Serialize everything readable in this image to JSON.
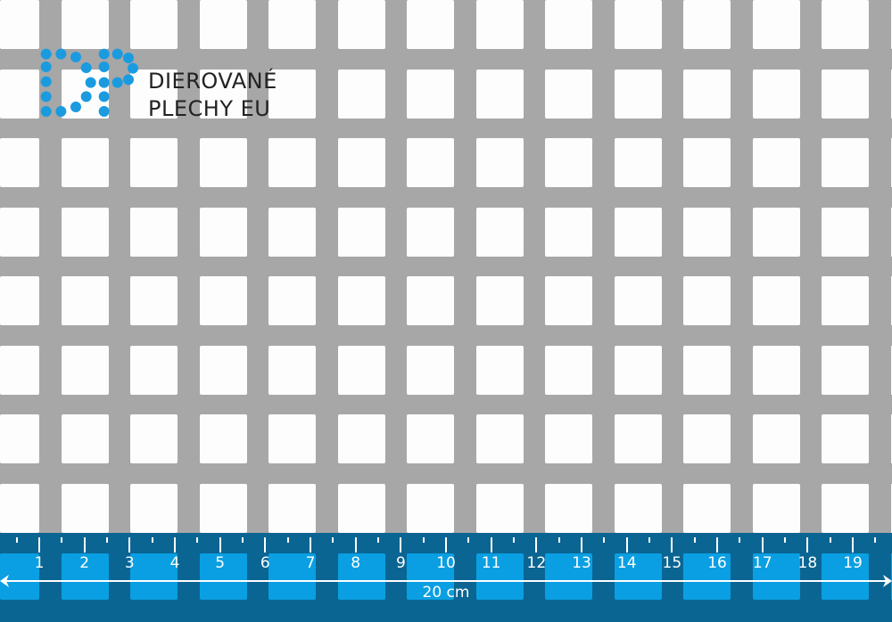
{
  "logo": {
    "text_line1": "DIEROVANÉ",
    "text_line2": "PLECHY EU",
    "color": "#1a9be0"
  },
  "ruler": {
    "labels": [
      "1",
      "2",
      "3",
      "4",
      "5",
      "6",
      "7",
      "8",
      "9",
      "10",
      "11",
      "12",
      "13",
      "14",
      "15",
      "16",
      "17",
      "18",
      "19"
    ],
    "length_label": "20 cm",
    "background_color": "#0b6593",
    "hole_color": "#0a9fe2"
  },
  "sheet": {
    "material_color": "#a7a7a7",
    "hole_shape": "square"
  }
}
